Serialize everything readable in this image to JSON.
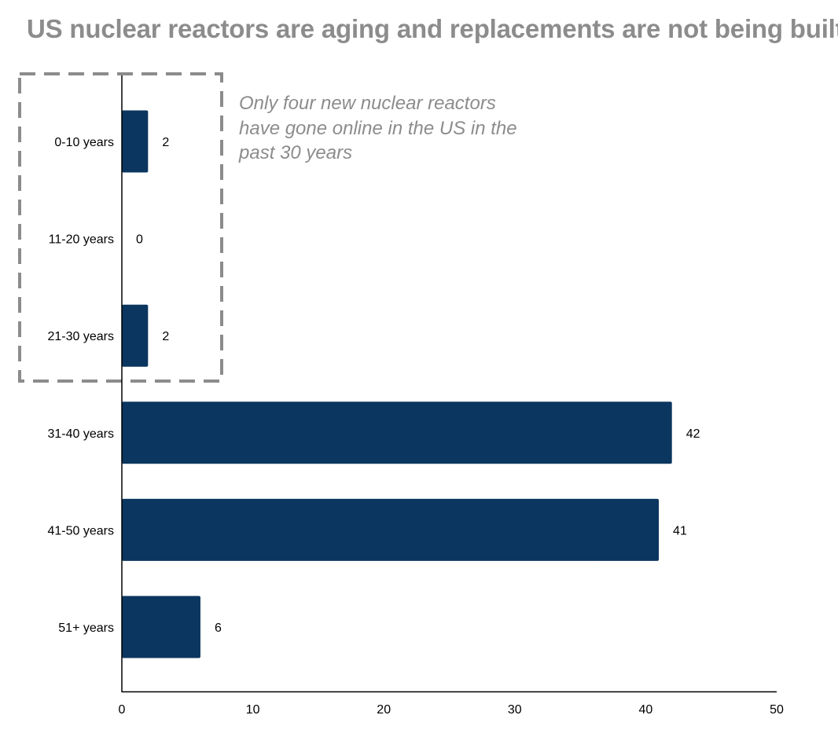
{
  "chart_data": {
    "type": "bar",
    "orientation": "horizontal",
    "title": "US nuclear reactors are aging and replacements are not being built",
    "xlabel": "",
    "ylabel": "",
    "categories": [
      "0-10 years",
      "11-20 years",
      "21-30 years",
      "31-40 years",
      "41-50 years",
      "51+ years"
    ],
    "values": [
      2,
      0,
      2,
      42,
      41,
      6
    ],
    "xlim": [
      0,
      50
    ],
    "x_ticks": [
      0,
      10,
      20,
      30,
      40,
      50
    ],
    "bar_color": "#0b365f",
    "grid": false,
    "annotation": {
      "text": "Only four new nuclear reactors have gone online in the US in the past 30 years",
      "color": "#8c8c8c",
      "highlighted_categories": [
        "0-10 years",
        "11-20 years",
        "21-30 years"
      ]
    }
  }
}
